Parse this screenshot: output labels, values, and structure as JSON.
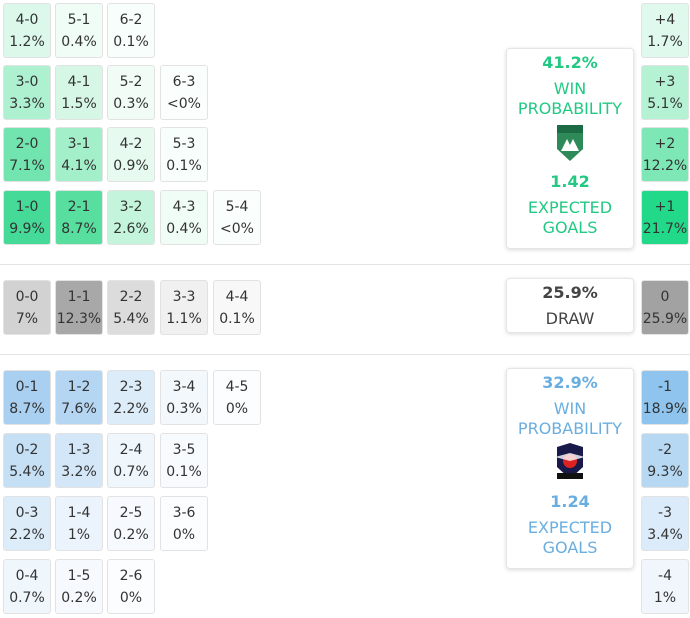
{
  "home": {
    "rows": [
      [
        {
          "score": "4-0",
          "prob": "1.2%",
          "color": "#dcf8ea"
        },
        {
          "score": "5-1",
          "prob": "0.4%",
          "color": "#f0fcf6"
        },
        {
          "score": "6-2",
          "prob": "0.1%",
          "color": "#f8fefb"
        }
      ],
      [
        {
          "score": "3-0",
          "prob": "3.3%",
          "color": "#aef1d0"
        },
        {
          "score": "4-1",
          "prob": "1.5%",
          "color": "#d6f7e6"
        },
        {
          "score": "5-2",
          "prob": "0.3%",
          "color": "#f2fcf7"
        },
        {
          "score": "6-3",
          "prob": "<0%",
          "color": "#fafefc"
        }
      ],
      [
        {
          "score": "2-0",
          "prob": "7.1%",
          "color": "#72e4b0"
        },
        {
          "score": "3-1",
          "prob": "4.1%",
          "color": "#a2efc9"
        },
        {
          "score": "4-2",
          "prob": "0.9%",
          "color": "#e6faf0"
        },
        {
          "score": "5-3",
          "prob": "0.1%",
          "color": "#f8fefb"
        }
      ],
      [
        {
          "score": "1-0",
          "prob": "9.9%",
          "color": "#45da98"
        },
        {
          "score": "2-1",
          "prob": "8.7%",
          "color": "#58de9f"
        },
        {
          "score": "3-2",
          "prob": "2.6%",
          "color": "#c4f5dc"
        },
        {
          "score": "4-3",
          "prob": "0.4%",
          "color": "#f0fcf6"
        },
        {
          "score": "5-4",
          "prob": "<0%",
          "color": "#fafefc"
        }
      ]
    ],
    "margins": [
      {
        "diff": "+4",
        "prob": "1.7%",
        "color": "#dff9ec"
      },
      {
        "diff": "+3",
        "prob": "5.1%",
        "color": "#b5f2d4"
      },
      {
        "diff": "+2",
        "prob": "12.2%",
        "color": "#7de7b6"
      },
      {
        "diff": "+1",
        "prob": "21.7%",
        "color": "#22d98a"
      }
    ],
    "card": {
      "prob": "41.2%",
      "label": "WIN PROBABILITY",
      "xg": "1.42",
      "xg_label": "EXPECTED GOALS"
    }
  },
  "draw": {
    "rows": [
      [
        {
          "score": "0-0",
          "prob": "7%",
          "color": "#d2d2d2"
        },
        {
          "score": "1-1",
          "prob": "12.3%",
          "color": "#a8a8a8"
        },
        {
          "score": "2-2",
          "prob": "5.4%",
          "color": "#dcdcdc"
        },
        {
          "score": "3-3",
          "prob": "1.1%",
          "color": "#f0f0f0"
        },
        {
          "score": "4-4",
          "prob": "0.1%",
          "color": "#f8f8f8"
        }
      ]
    ],
    "margins": [
      {
        "diff": "0",
        "prob": "25.9%",
        "color": "#a2a2a2"
      }
    ],
    "card": {
      "prob": "25.9%",
      "label": "DRAW"
    }
  },
  "away": {
    "rows": [
      [
        {
          "score": "0-1",
          "prob": "8.7%",
          "color": "#a9d0f1"
        },
        {
          "score": "1-2",
          "prob": "7.6%",
          "color": "#b4d6f3"
        },
        {
          "score": "2-3",
          "prob": "2.2%",
          "color": "#dcecf9"
        },
        {
          "score": "3-4",
          "prob": "0.3%",
          "color": "#f3f8fd"
        },
        {
          "score": "4-5",
          "prob": "0%",
          "color": "#fbfdfe"
        }
      ],
      [
        {
          "score": "0-2",
          "prob": "5.4%",
          "color": "#c5e0f5"
        },
        {
          "score": "1-3",
          "prob": "3.2%",
          "color": "#d4e7f8"
        },
        {
          "score": "2-4",
          "prob": "0.7%",
          "color": "#eff6fc"
        },
        {
          "score": "3-5",
          "prob": "0.1%",
          "color": "#f8fbfe"
        }
      ],
      [
        {
          "score": "0-3",
          "prob": "2.2%",
          "color": "#dcecf9"
        },
        {
          "score": "1-4",
          "prob": "1%",
          "color": "#ebf4fc"
        },
        {
          "score": "2-5",
          "prob": "0.2%",
          "color": "#f6fafe"
        },
        {
          "score": "3-6",
          "prob": "0%",
          "color": "#fbfdfe"
        }
      ],
      [
        {
          "score": "0-4",
          "prob": "0.7%",
          "color": "#eff6fc"
        },
        {
          "score": "1-5",
          "prob": "0.2%",
          "color": "#f6fafe"
        },
        {
          "score": "2-6",
          "prob": "0%",
          "color": "#fbfdfe"
        }
      ]
    ],
    "margins": [
      {
        "diff": "-1",
        "prob": "18.9%",
        "color": "#8ec4ee"
      },
      {
        "diff": "-2",
        "prob": "9.3%",
        "color": "#b6d8f3"
      },
      {
        "diff": "-3",
        "prob": "3.4%",
        "color": "#dbebf9"
      },
      {
        "diff": "-4",
        "prob": "1%",
        "color": "#f0f6fc"
      }
    ],
    "card": {
      "prob": "32.9%",
      "label": "WIN PROBABILITY",
      "xg": "1.24",
      "xg_label": "EXPECTED GOALS"
    }
  }
}
